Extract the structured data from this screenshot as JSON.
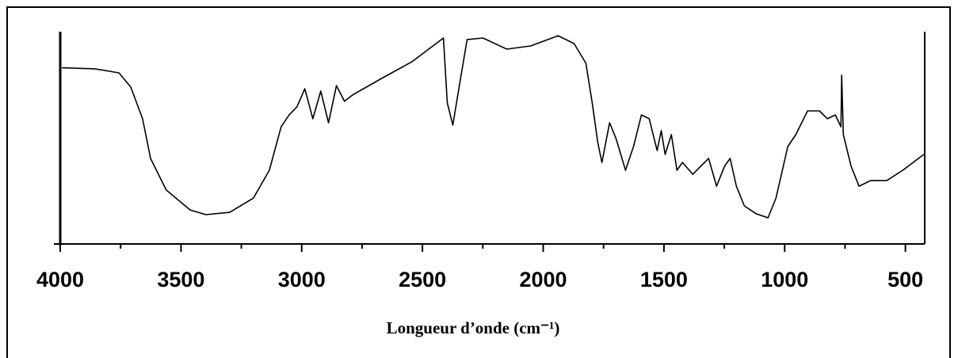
{
  "chart_data": {
    "type": "line",
    "xlabel": "Longueur d’onde (cm⁻¹)",
    "x": [
      3993,
      3856,
      3757,
      3708,
      3659,
      3626,
      3561,
      3462,
      3397,
      3298,
      3200,
      3134,
      3085,
      3052,
      3020,
      2987,
      2954,
      2921,
      2889,
      2856,
      2823,
      2790,
      2675,
      2544,
      2413,
      2397,
      2374,
      2348,
      2315,
      2249,
      2151,
      2052,
      1938,
      1872,
      1823,
      1797,
      1774,
      1757,
      1725,
      1698,
      1659,
      1626,
      1593,
      1561,
      1528,
      1511,
      1495,
      1469,
      1446,
      1423,
      1380,
      1348,
      1315,
      1282,
      1249,
      1226,
      1200,
      1167,
      1118,
      1069,
      1036,
      987,
      954,
      905,
      856,
      823,
      790,
      767,
      764,
      757,
      725,
      692,
      643,
      577,
      511,
      446,
      423
    ],
    "values": [
      83,
      82.5,
      80.6,
      73.9,
      59,
      40.3,
      25.4,
      16,
      13.8,
      14.9,
      21.6,
      34.7,
      55.2,
      60.8,
      64.6,
      73.1,
      59,
      72,
      57.1,
      74.6,
      67.2,
      70.1,
      77.6,
      85.8,
      97,
      66.4,
      56,
      73.9,
      96.3,
      97,
      91.8,
      93.3,
      98.1,
      94.4,
      85.1,
      66.4,
      47.8,
      38.4,
      57.1,
      49.6,
      34.7,
      45.9,
      60.8,
      59,
      44,
      53.4,
      42.2,
      51.5,
      34.7,
      38.4,
      32.8,
      36.6,
      40.3,
      27.2,
      36.6,
      40.3,
      27.2,
      17.9,
      14.2,
      12.3,
      21.6,
      45.9,
      51.5,
      62.7,
      62.7,
      59,
      60.8,
      55.2,
      79.5,
      51.5,
      36.6,
      27.2,
      29.9,
      29.9,
      34.7,
      40.3,
      42.2
    ],
    "color": "#000000",
    "xlim": [
      4000,
      420
    ],
    "ylim": [
      0,
      100
    ],
    "xticks": [
      4000,
      3500,
      3000,
      2500,
      2000,
      1500,
      1000,
      500
    ],
    "xticks_minor": [
      3750,
      3250,
      2750,
      2250,
      1750,
      1250,
      750
    ]
  }
}
